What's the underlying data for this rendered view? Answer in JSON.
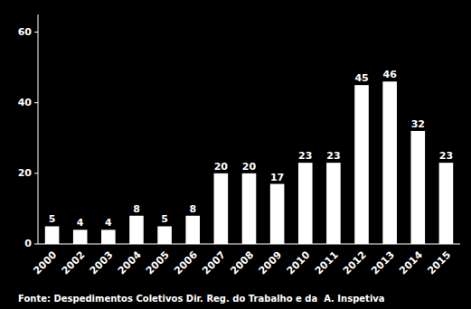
{
  "chart_data": {
    "type": "bar",
    "categories": [
      "2000",
      "2002",
      "2003",
      "2004",
      "2005",
      "2006",
      "2007",
      "2008",
      "2009",
      "2010",
      "2011",
      "2012",
      "2013",
      "2014",
      "2015"
    ],
    "values": [
      5,
      4,
      4,
      8,
      5,
      8,
      20,
      20,
      17,
      23,
      23,
      45,
      46,
      32,
      23
    ],
    "color": "#ffffff",
    "ylim": [
      0,
      65
    ],
    "yticks": [
      0,
      20,
      40,
      60
    ],
    "grid": false,
    "data_labels": true,
    "annotation": "Fonte: Despedimentos Coletivos Dir. Reg. do Trabalho e da  A. Inspetiva"
  }
}
